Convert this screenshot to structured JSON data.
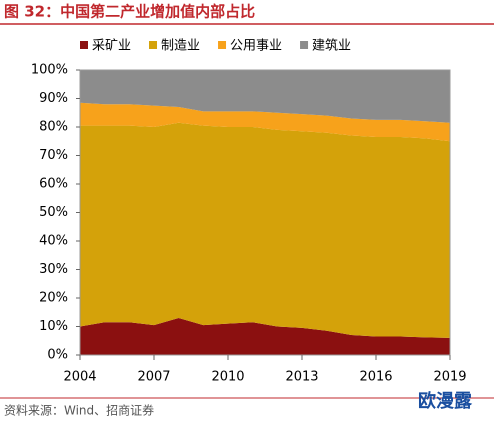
{
  "chart_data": {
    "type": "area",
    "stacked": true,
    "title": "图 32：中国第二产业增加值内部占比",
    "source": "资料来源：Wind、招商证券",
    "watermark": "欧漫露",
    "x": [
      2004,
      2005,
      2006,
      2007,
      2008,
      2009,
      2010,
      2011,
      2012,
      2013,
      2014,
      2015,
      2016,
      2017,
      2018,
      2019
    ],
    "series": [
      {
        "name": "采矿业",
        "color": "#8b1010",
        "values": [
          10,
          11.5,
          11.5,
          10.5,
          13,
          10.5,
          11,
          11.5,
          10,
          9.5,
          8.5,
          7,
          6.5,
          6.5,
          6.2,
          6
        ]
      },
      {
        "name": "制造业",
        "color": "#d4a20a",
        "values": [
          70.5,
          69,
          69,
          69.5,
          68.5,
          70,
          69,
          68.5,
          69,
          69,
          69.5,
          70,
          70,
          70,
          69.8,
          69
        ]
      },
      {
        "name": "公用事业",
        "color": "#f7a21b",
        "values": [
          8,
          7.5,
          7.5,
          7.5,
          5.5,
          5,
          5.5,
          5.5,
          6,
          6,
          6,
          6,
          6,
          6,
          6,
          6.5
        ]
      },
      {
        "name": "建筑业",
        "color": "#8c8c8c",
        "values": [
          11.5,
          12,
          12,
          12.5,
          13,
          14.5,
          14.5,
          14.5,
          15,
          15.5,
          16,
          17,
          17.5,
          17.5,
          18,
          18.5
        ]
      }
    ],
    "xlim": [
      2004,
      2019
    ],
    "xticks": [
      2004,
      2007,
      2010,
      2013,
      2016,
      2019
    ],
    "ylim": [
      0,
      100
    ],
    "yticks": [
      {
        "value": 0,
        "label": "0%"
      },
      {
        "value": 10,
        "label": "10%"
      },
      {
        "value": 20,
        "label": "20%"
      },
      {
        "value": 30,
        "label": "30%"
      },
      {
        "value": 40,
        "label": "40%"
      },
      {
        "value": 50,
        "label": "50%"
      },
      {
        "value": 60,
        "label": "60%"
      },
      {
        "value": 70,
        "label": "70%"
      },
      {
        "value": 80,
        "label": "80%"
      },
      {
        "value": 90,
        "label": "90%"
      },
      {
        "value": 100,
        "label": "100%"
      }
    ],
    "legend": "top"
  }
}
